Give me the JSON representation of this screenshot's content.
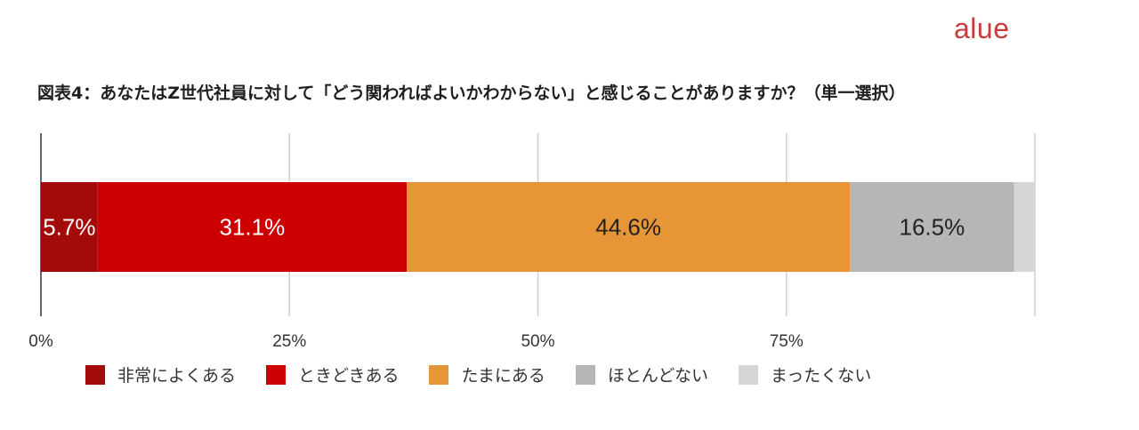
{
  "brand": {
    "text": "alue",
    "color": "#c83c3c"
  },
  "chart_data": {
    "type": "bar",
    "orientation": "horizontal-stacked-100",
    "title": "図表4：あなたはZ世代社員に対して「どう関わればよいかわからない」と感じることがありますか？（単一選択）",
    "xlim": [
      0,
      100
    ],
    "ticks": [
      "0%",
      "25%",
      "50%",
      "75%"
    ],
    "tick_values": [
      0,
      25,
      50,
      75
    ],
    "grid": true,
    "legend_position": "bottom",
    "series": [
      {
        "name": "非常によくある",
        "value": 5.7,
        "label": "5.7%",
        "color": "#a30b0b",
        "label_color": "#ffffff"
      },
      {
        "name": "ときどきある",
        "value": 31.1,
        "label": "31.1%",
        "color": "#cc0000",
        "label_color": "#ffffff"
      },
      {
        "name": "たまにある",
        "value": 44.6,
        "label": "44.6%",
        "color": "#e69537",
        "label_color": "#222222"
      },
      {
        "name": "ほとんどない",
        "value": 16.5,
        "label": "16.5%",
        "color": "#b6b6b6",
        "label_color": "#222222"
      },
      {
        "name": "まったくない",
        "value": 2.1,
        "label": "",
        "color": "#d6d6d6",
        "label_color": "#222222"
      }
    ]
  }
}
